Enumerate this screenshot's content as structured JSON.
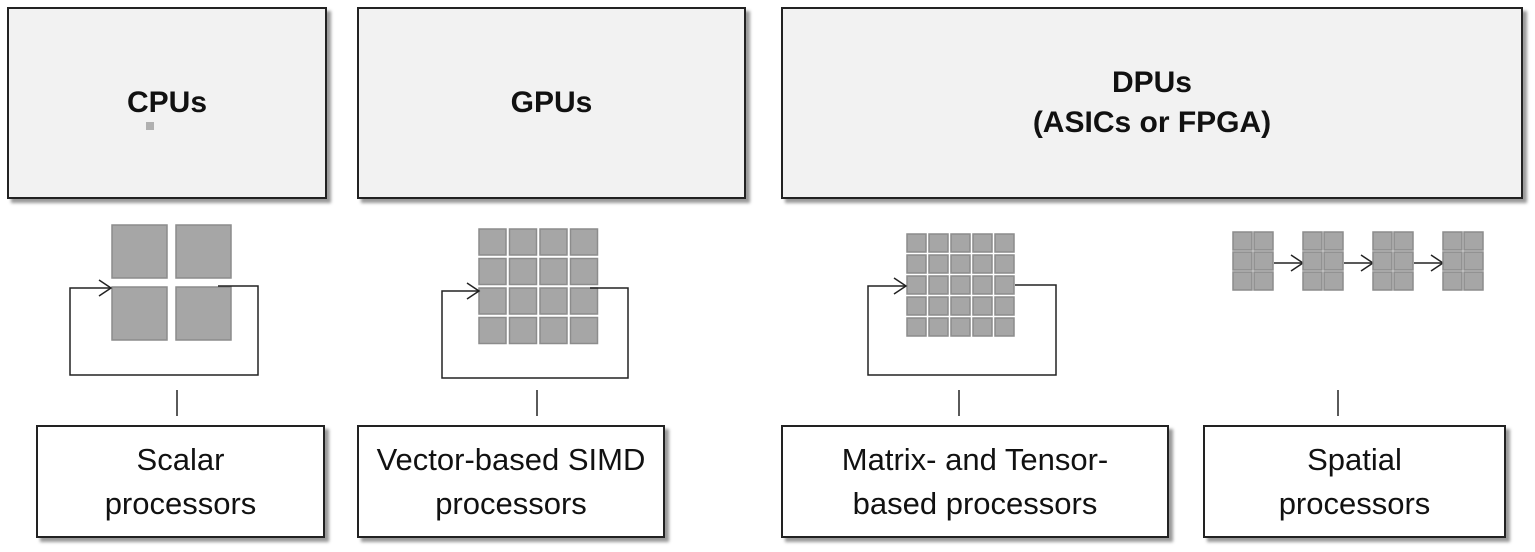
{
  "headers": [
    {
      "line1": "CPUs",
      "line2": ""
    },
    {
      "line1": "GPUs",
      "line2": ""
    },
    {
      "line1": "DPUs",
      "line2": "(ASICs or FPGA)"
    }
  ],
  "labels": [
    {
      "line1": "Scalar",
      "line2": "processors"
    },
    {
      "line1": "Vector-based SIMD",
      "line2": "processors"
    },
    {
      "line1": "Matrix- and Tensor-",
      "line2": "based processors"
    },
    {
      "line1": "Spatial",
      "line2": "processors"
    }
  ],
  "colors": {
    "cell": "#a6a6a6",
    "cell_border": "#8c8c8c",
    "header_bg": "#f2f2f2",
    "line": "#222222"
  }
}
